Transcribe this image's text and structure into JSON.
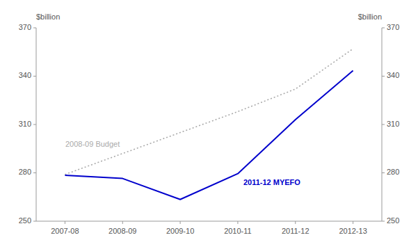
{
  "chart_data": {
    "type": "line",
    "categories": [
      "2007-08",
      "2008-09",
      "2009-10",
      "2010-11",
      "2011-12",
      "2012-13"
    ],
    "series": [
      {
        "name": "2008-09 Budget",
        "color": "#aaaaaa",
        "line_style": "dotted",
        "values": [
          279.0,
          292.0,
          305.0,
          318.0,
          332.0,
          357.0
        ]
      },
      {
        "name": "2011-12 MYEFO",
        "color": "#0000cc",
        "line_style": "solid",
        "values": [
          278.5,
          276.5,
          263.5,
          279.5,
          313.0,
          343.5
        ]
      }
    ],
    "ylabel": "$billion",
    "y2label": "$billion",
    "ylim": [
      250,
      370
    ],
    "yticks": [
      250,
      280,
      310,
      340,
      370
    ],
    "y2lim": [
      250,
      370
    ],
    "y2ticks": [
      250,
      280,
      310,
      340,
      370
    ],
    "grid": false
  }
}
